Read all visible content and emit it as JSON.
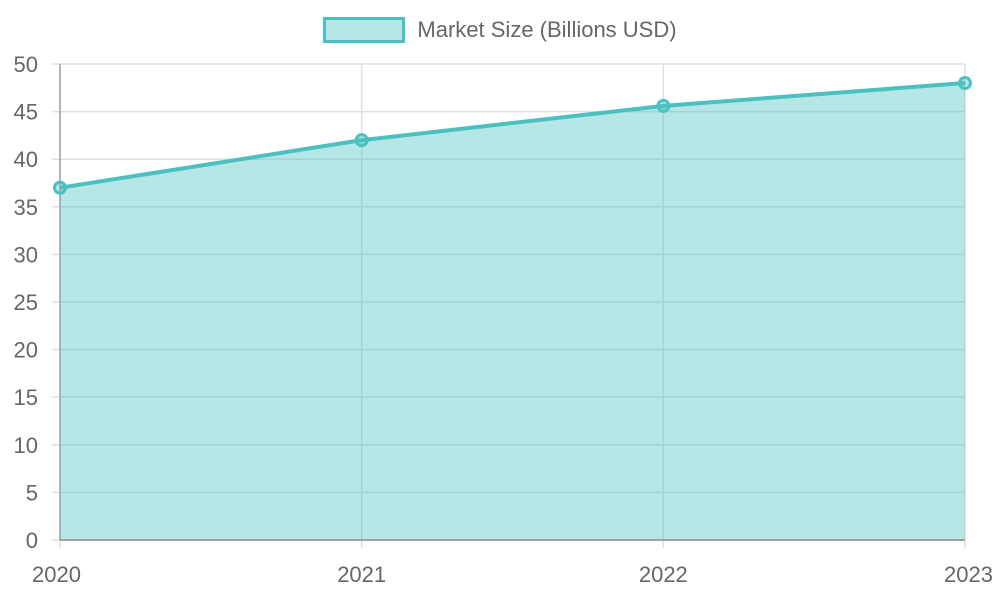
{
  "legend": {
    "label": "Market Size (Billions USD)",
    "color": "#4bc0c0",
    "fill": "#b5e5e5"
  },
  "chart_data": {
    "type": "area",
    "categories": [
      "2020",
      "2021",
      "2022",
      "2023"
    ],
    "series": [
      {
        "name": "Market Size (Billions USD)",
        "values": [
          37.0,
          42.0,
          45.6,
          48.0
        ],
        "color": "#4bc0c0"
      }
    ],
    "title": "",
    "xlabel": "",
    "ylabel": "",
    "ylim": [
      0,
      50
    ],
    "yticks": [
      "0",
      "5",
      "10",
      "15",
      "20",
      "25",
      "30",
      "35",
      "40",
      "45",
      "50"
    ],
    "grid": true,
    "legend_position": "top"
  }
}
